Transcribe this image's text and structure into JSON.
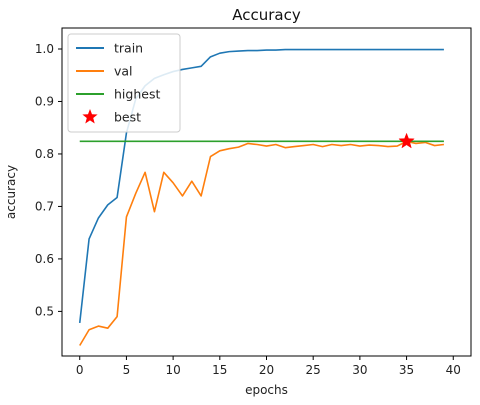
{
  "chart_data": {
    "type": "line",
    "title": "Accuracy",
    "xlabel": "epochs",
    "ylabel": "accuracy",
    "xlim": [
      -1.9,
      41.9
    ],
    "ylim": [
      0.415,
      1.04
    ],
    "xticks": [
      0,
      5,
      10,
      15,
      20,
      25,
      30,
      35,
      40
    ],
    "yticks": [
      0.5,
      0.6,
      0.7,
      0.8,
      0.9,
      1.0
    ],
    "xtick_labels": [
      "0",
      "5",
      "10",
      "15",
      "20",
      "25",
      "30",
      "35",
      "40"
    ],
    "ytick_labels": [
      "0.5",
      "0.6",
      "0.7",
      "0.8",
      "0.9",
      "1.0"
    ],
    "grid": false,
    "legend_position": "top-left",
    "series": [
      {
        "name": "train",
        "color": "#1f77b4",
        "x": [
          0,
          1,
          2,
          3,
          4,
          5,
          6,
          7,
          8,
          9,
          10,
          11,
          12,
          13,
          14,
          15,
          16,
          17,
          18,
          19,
          20,
          21,
          22,
          23,
          24,
          25,
          26,
          27,
          28,
          29,
          30,
          31,
          32,
          33,
          34,
          35,
          36,
          37,
          38,
          39
        ],
        "y": [
          0.478,
          0.638,
          0.678,
          0.703,
          0.717,
          0.84,
          0.905,
          0.93,
          0.944,
          0.951,
          0.957,
          0.961,
          0.964,
          0.967,
          0.985,
          0.992,
          0.995,
          0.996,
          0.997,
          0.997,
          0.998,
          0.998,
          0.999,
          0.999,
          0.999,
          0.999,
          0.999,
          0.999,
          0.999,
          0.999,
          0.999,
          0.999,
          0.999,
          0.999,
          0.999,
          0.999,
          0.999,
          0.999,
          0.999,
          0.999
        ]
      },
      {
        "name": "val",
        "color": "#ff7f0e",
        "x": [
          0,
          1,
          2,
          3,
          4,
          5,
          6,
          7,
          8,
          9,
          10,
          11,
          12,
          13,
          14,
          15,
          16,
          17,
          18,
          19,
          20,
          21,
          22,
          23,
          24,
          25,
          26,
          27,
          28,
          29,
          30,
          31,
          32,
          33,
          34,
          35,
          36,
          37,
          38,
          39
        ],
        "y": [
          0.435,
          0.465,
          0.472,
          0.468,
          0.49,
          0.68,
          0.725,
          0.765,
          0.69,
          0.765,
          0.745,
          0.72,
          0.748,
          0.72,
          0.795,
          0.806,
          0.81,
          0.813,
          0.82,
          0.818,
          0.815,
          0.818,
          0.812,
          0.814,
          0.816,
          0.818,
          0.814,
          0.818,
          0.816,
          0.818,
          0.815,
          0.817,
          0.816,
          0.814,
          0.815,
          0.824,
          0.82,
          0.822,
          0.816,
          0.818
        ]
      },
      {
        "name": "highest",
        "color": "#2ca02c",
        "x": [
          0,
          39
        ],
        "y": [
          0.824,
          0.824
        ]
      }
    ],
    "markers": [
      {
        "name": "best",
        "color": "#ff0000",
        "shape": "star",
        "x": 35,
        "y": 0.824
      }
    ]
  }
}
